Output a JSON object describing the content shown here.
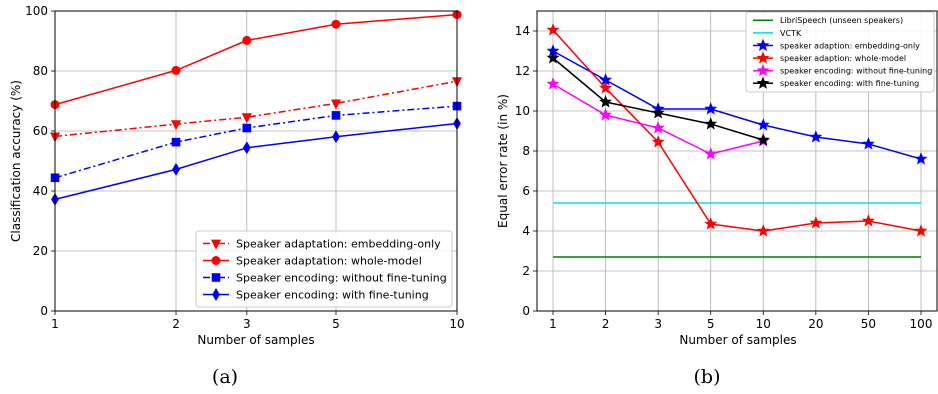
{
  "chart_data": [
    {
      "type": "line",
      "caption": "(a)",
      "xlabel": "Number of samples",
      "ylabel": "Classification accuracy (%)",
      "x_scale": "log",
      "x": [
        1,
        2,
        3,
        5,
        10
      ],
      "x_tick_labels": [
        "1",
        "2",
        "3",
        "5",
        "10"
      ],
      "ylim": [
        0,
        100
      ],
      "y_ticks": [
        0,
        20,
        40,
        60,
        80,
        100
      ],
      "grid": true,
      "legend_position": "bottom-right",
      "series": [
        {
          "name": "Speaker adaptation: embedding-only",
          "values": [
            58.2,
            62.3,
            64.6,
            69.2,
            76.6
          ],
          "color": "#ff0000",
          "line_style": "dash-dot",
          "marker": "triangle-down"
        },
        {
          "name": "Speaker adaptation: whole-model",
          "values": [
            68.8,
            80.2,
            90.2,
            95.6,
            98.8
          ],
          "color": "#ff0000",
          "line_style": "solid",
          "marker": "circle"
        },
        {
          "name": "Speaker encoding: without fine-tuning",
          "values": [
            44.4,
            56.3,
            61.0,
            65.2,
            68.3
          ],
          "color": "#0000ff",
          "line_style": "dash-dot",
          "marker": "square"
        },
        {
          "name": "Speaker encoding: with fine-tuning",
          "values": [
            37.2,
            47.2,
            54.4,
            58.1,
            62.5
          ],
          "color": "#0000ff",
          "line_style": "solid",
          "marker": "thin-diamond"
        }
      ]
    },
    {
      "type": "line",
      "caption": "(b)",
      "xlabel": "Number of samples",
      "ylabel": "Equal error rate (in %)",
      "categories": [
        "1",
        "2",
        "3",
        "5",
        "10",
        "20",
        "50",
        "100"
      ],
      "ylim": [
        0,
        15
      ],
      "y_ticks": [
        0,
        2,
        4,
        6,
        8,
        10,
        12,
        14
      ],
      "grid": true,
      "legend_position": "top-right",
      "series": [
        {
          "name": "LibriSpeech (unseen speakers)",
          "values": [
            2.7,
            2.7,
            2.7,
            2.7,
            2.7,
            2.7,
            2.7,
            2.7
          ],
          "color": "#008000",
          "line_style": "solid",
          "marker": "none"
        },
        {
          "name": "VCTK",
          "values": [
            5.4,
            5.4,
            5.4,
            5.4,
            5.4,
            5.4,
            5.4,
            5.4
          ],
          "color": "#00e0e0",
          "line_style": "solid",
          "marker": "none"
        },
        {
          "name": "speaker adaption: embedding-only",
          "values": [
            13.0,
            11.55,
            10.1,
            10.1,
            9.3,
            8.7,
            8.35,
            7.6
          ],
          "color": "#0000ff",
          "line_style": "solid",
          "marker": "star"
        },
        {
          "name": "speaker adaption: whole-model",
          "values": [
            14.05,
            11.15,
            8.45,
            4.35,
            4.0,
            4.4,
            4.5,
            4.0
          ],
          "color": "#ff0000",
          "line_style": "solid",
          "marker": "star"
        },
        {
          "name": "speaker encoding: without fine-tuning",
          "values": [
            11.35,
            9.8,
            9.15,
            7.85,
            8.5,
            null,
            null,
            null
          ],
          "color": "#ff00ff",
          "line_style": "solid",
          "marker": "star"
        },
        {
          "name": "speaker encoding: with fine-tuning",
          "values": [
            12.65,
            10.45,
            9.9,
            9.35,
            8.55,
            null,
            null,
            null
          ],
          "color": "#000000",
          "line_style": "solid",
          "marker": "star"
        }
      ]
    }
  ]
}
